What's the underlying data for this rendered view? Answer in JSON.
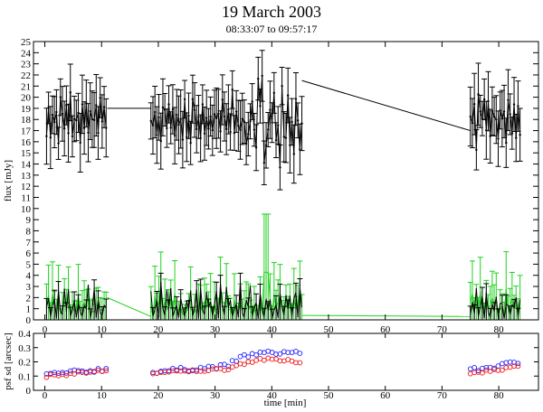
{
  "chart_data": [
    {
      "type": "line",
      "title": "19 March 2003",
      "subtitle": "08:33:07 to 09:57:17",
      "xlabel": "",
      "ylabel": "flux [mJy]",
      "xlim": [
        -2,
        87
      ],
      "ylim": [
        0,
        25
      ],
      "yticks": [
        0,
        1,
        2,
        3,
        4,
        5,
        6,
        7,
        8,
        9,
        10,
        11,
        12,
        13,
        14,
        15,
        16,
        17,
        18,
        19,
        20,
        21,
        22,
        23,
        24,
        25
      ],
      "xticks": [
        0,
        10,
        20,
        30,
        40,
        50,
        60,
        70,
        80
      ],
      "colors": {
        "series_main": "#000000",
        "series_green": "#1fd11f",
        "series_black_low": "#000000"
      },
      "segments": [
        {
          "x_start": 0.3,
          "x_end": 11.0,
          "step": 0.35
        },
        {
          "x_start": 18.7,
          "x_end": 45.3,
          "step": 0.35
        },
        {
          "x_start": 75.0,
          "x_end": 84.0,
          "step": 0.35
        }
      ],
      "series": [
        {
          "style": "black points with error bars",
          "level_main": 18.0,
          "sample_values": [
            17.5,
            18.2,
            16.8,
            19.0,
            17.3,
            18.6,
            16.2,
            19.5,
            18.0,
            17.1,
            18.9,
            16.5,
            19.8,
            17.0,
            18.3
          ],
          "connector": [
            [
              11,
              19
            ],
            [
              18.7,
              19
            ],
            [
              45.3,
              21.5
            ],
            [
              75,
              17.0
            ]
          ]
        },
        {
          "style": "green upper error tips",
          "peak": [
            39.0,
            9.5
          ],
          "sample_values": [
            2.5,
            3.8,
            1.6,
            4.4,
            2.1,
            3.2,
            5.0,
            1.9,
            2.9,
            4.1
          ],
          "connector": [
            [
              11,
              2.0
            ],
            [
              18.7,
              0.3
            ],
            [
              45.3,
              0.4
            ],
            [
              75,
              0.3
            ]
          ]
        },
        {
          "style": "black lower points",
          "sample_values": [
            1.0,
            2.8,
            0.3,
            1.6,
            2.4,
            0.2,
            2.9,
            1.2,
            0.4,
            2.6
          ]
        }
      ]
    },
    {
      "type": "scatter",
      "xlabel": "time [min]",
      "ylabel": "psf sd [arcsec]",
      "xlim": [
        -2,
        87
      ],
      "ylim": [
        0,
        0.4
      ],
      "yticks": [
        "0",
        "0.1",
        "0.2",
        "0.3",
        "0.4"
      ],
      "xticks": [
        0,
        10,
        20,
        30,
        40,
        50,
        60,
        70,
        80
      ],
      "colors": {
        "series_a": "#1a1aff",
        "series_b": "#ee1111"
      },
      "series": [
        {
          "marker": "open circle",
          "trend": [
            [
              0.3,
              0.11
            ],
            [
              11,
              0.15
            ],
            [
              18.7,
              0.13
            ],
            [
              32,
              0.17
            ],
            [
              35,
              0.24
            ],
            [
              38,
              0.26
            ],
            [
              45,
              0.27
            ],
            [
              75,
              0.14
            ],
            [
              84,
              0.2
            ]
          ]
        },
        {
          "marker": "open circle",
          "trend": [
            [
              0.3,
              0.1
            ],
            [
              11,
              0.14
            ],
            [
              18.7,
              0.12
            ],
            [
              32,
              0.15
            ],
            [
              35,
              0.19
            ],
            [
              38,
              0.22
            ],
            [
              45,
              0.2
            ],
            [
              75,
              0.12
            ],
            [
              84,
              0.17
            ]
          ]
        }
      ]
    }
  ]
}
